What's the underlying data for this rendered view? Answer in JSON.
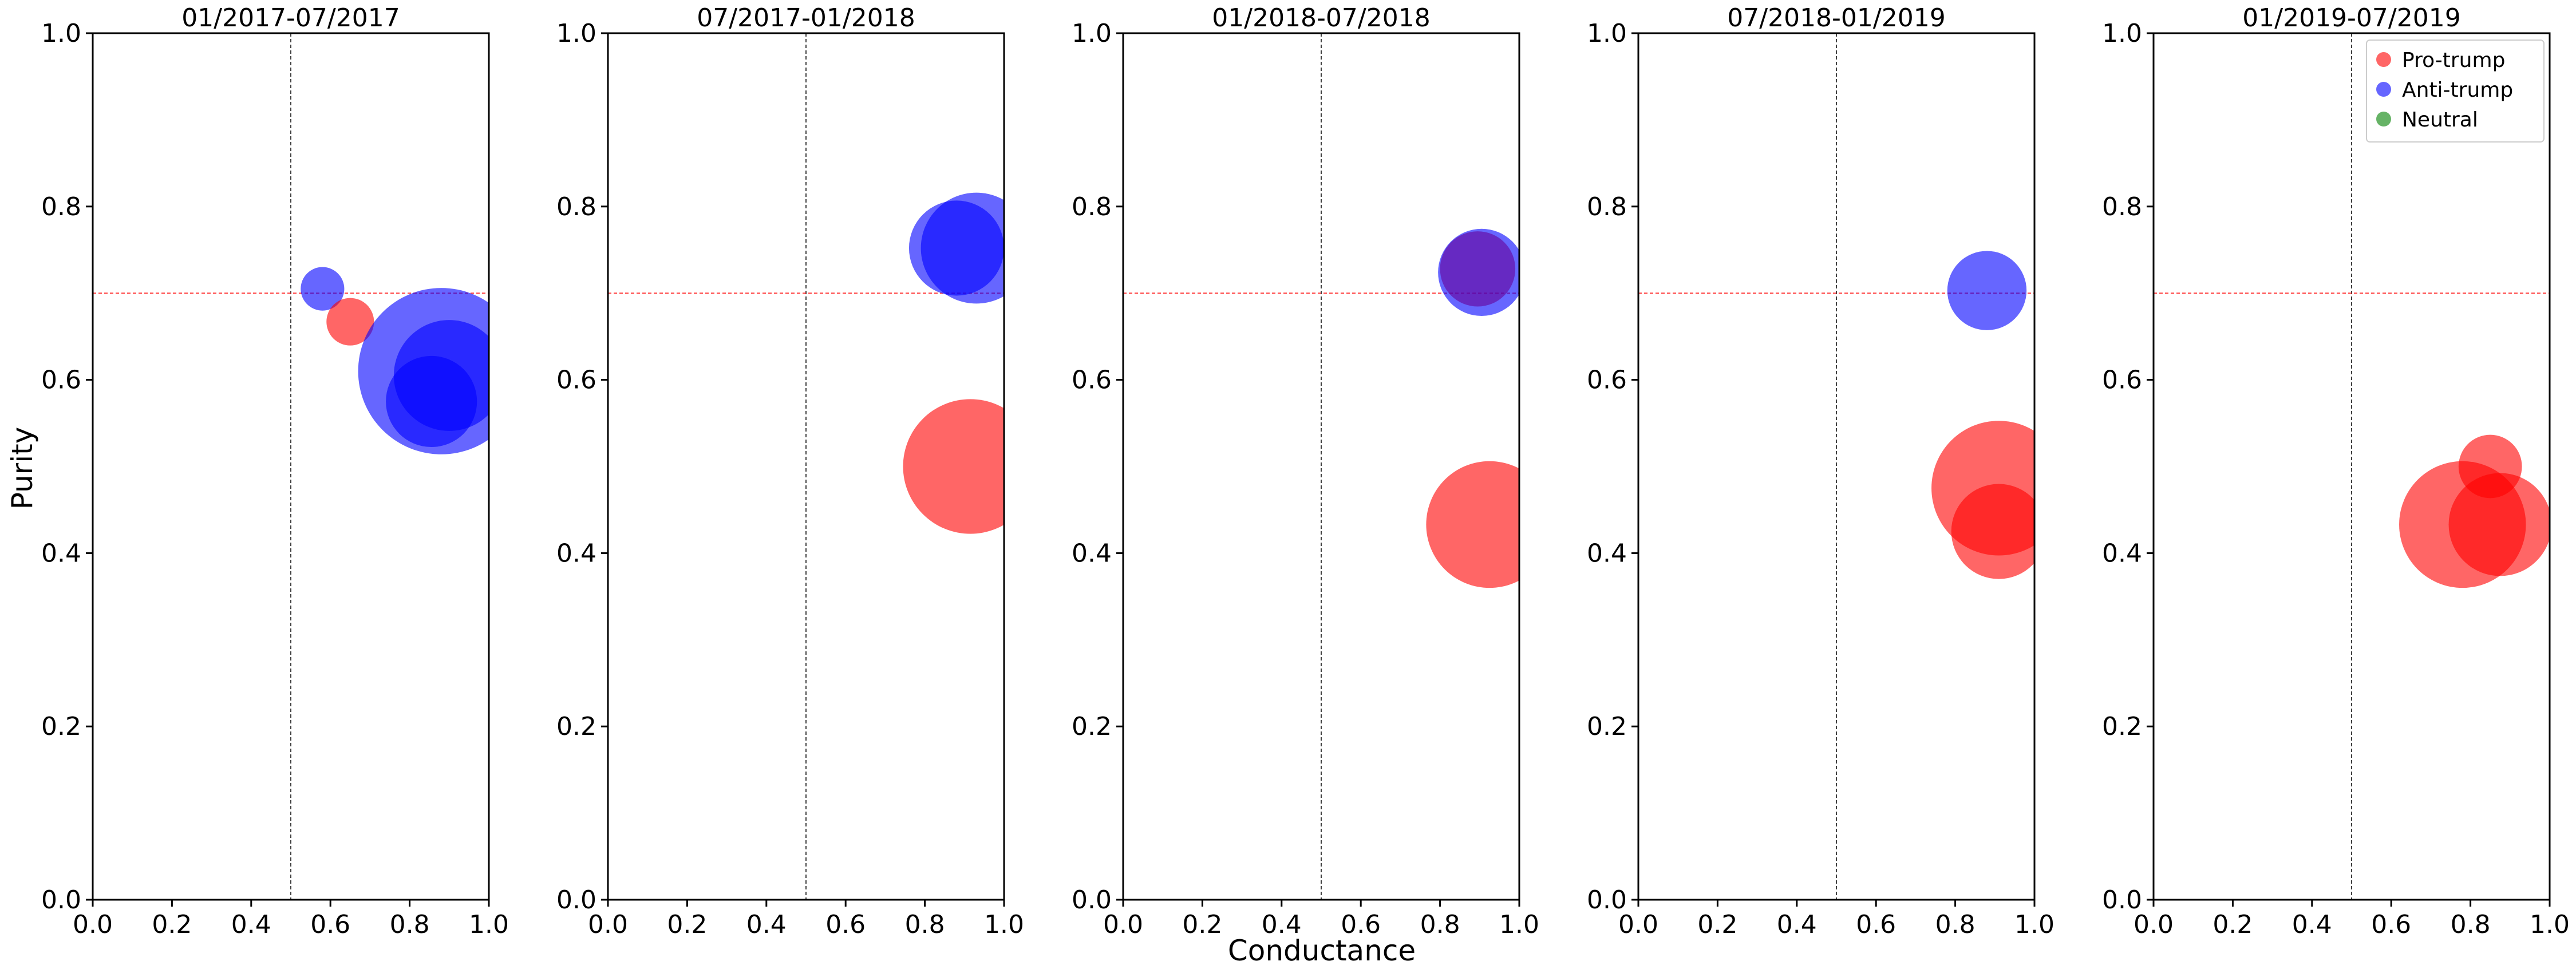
{
  "figure": {
    "xlabel": "Conductance",
    "ylabel": "Purity",
    "legend": {
      "placement": "upper-right",
      "entries": [
        {
          "label": "Pro-trump",
          "color": "#ff0000"
        },
        {
          "label": "Anti-trump",
          "color": "#0000ff"
        },
        {
          "label": "Neutral",
          "color": "#008000"
        }
      ]
    }
  },
  "chart_data": [
    {
      "type": "scatter",
      "title": "01/2017-07/2017",
      "xlim": [
        0,
        1
      ],
      "ylim": [
        0,
        1
      ],
      "xticks": [
        "0.0",
        "0.2",
        "0.4",
        "0.6",
        "0.8",
        "1.0"
      ],
      "yticks": [
        "0.0",
        "0.2",
        "0.4",
        "0.6",
        "0.8",
        "1.0"
      ],
      "vline": 0.5,
      "hline": 0.7,
      "points": [
        {
          "series": "Anti-trump",
          "x": 0.58,
          "y": 0.705,
          "size": 0.11
        },
        {
          "series": "Pro-trump",
          "x": 0.65,
          "y": 0.667,
          "size": 0.12
        },
        {
          "series": "Anti-trump",
          "x": 0.88,
          "y": 0.61,
          "size": 0.42
        },
        {
          "series": "Anti-trump",
          "x": 0.9,
          "y": 0.605,
          "size": 0.28
        },
        {
          "series": "Anti-trump",
          "x": 0.855,
          "y": 0.575,
          "size": 0.23
        }
      ]
    },
    {
      "type": "scatter",
      "title": "07/2017-01/2018",
      "xlim": [
        0,
        1
      ],
      "ylim": [
        0,
        1
      ],
      "xticks": [
        "0.0",
        "0.2",
        "0.4",
        "0.6",
        "0.8",
        "1.0"
      ],
      "yticks": [
        "0.0",
        "0.2",
        "0.4",
        "0.6",
        "0.8",
        "1.0"
      ],
      "vline": 0.5,
      "hline": 0.7,
      "points": [
        {
          "series": "Anti-trump",
          "x": 0.88,
          "y": 0.752,
          "size": 0.24
        },
        {
          "series": "Anti-trump",
          "x": 0.93,
          "y": 0.752,
          "size": 0.28
        },
        {
          "series": "Pro-trump",
          "x": 0.915,
          "y": 0.5,
          "size": 0.34
        }
      ]
    },
    {
      "type": "scatter",
      "title": "01/2018-07/2018",
      "xlim": [
        0,
        1
      ],
      "ylim": [
        0,
        1
      ],
      "xticks": [
        "0.0",
        "0.2",
        "0.4",
        "0.6",
        "0.8",
        "1.0"
      ],
      "yticks": [
        "0.0",
        "0.2",
        "0.4",
        "0.6",
        "0.8",
        "1.0"
      ],
      "vline": 0.5,
      "hline": 0.7,
      "points": [
        {
          "series": "Pro-trump",
          "x": 0.895,
          "y": 0.728,
          "size": 0.19
        },
        {
          "series": "Anti-trump",
          "x": 0.905,
          "y": 0.724,
          "size": 0.22
        },
        {
          "series": "Pro-trump",
          "x": 0.925,
          "y": 0.433,
          "size": 0.32
        }
      ]
    },
    {
      "type": "scatter",
      "title": "07/2018-01/2019",
      "xlim": [
        0,
        1
      ],
      "ylim": [
        0,
        1
      ],
      "xticks": [
        "0.0",
        "0.2",
        "0.4",
        "0.6",
        "0.8",
        "1.0"
      ],
      "yticks": [
        "0.0",
        "0.2",
        "0.4",
        "0.6",
        "0.8",
        "1.0"
      ],
      "vline": 0.5,
      "hline": 0.7,
      "points": [
        {
          "series": "Anti-trump",
          "x": 0.88,
          "y": 0.703,
          "size": 0.2
        },
        {
          "series": "Pro-trump",
          "x": 0.91,
          "y": 0.475,
          "size": 0.34
        },
        {
          "series": "Pro-trump",
          "x": 0.91,
          "y": 0.425,
          "size": 0.24
        }
      ]
    },
    {
      "type": "scatter",
      "title": "01/2019-07/2019",
      "xlim": [
        0,
        1
      ],
      "ylim": [
        0,
        1
      ],
      "xticks": [
        "0.0",
        "0.2",
        "0.4",
        "0.6",
        "0.8",
        "1.0"
      ],
      "yticks": [
        "0.0",
        "0.2",
        "0.4",
        "0.6",
        "0.8",
        "1.0"
      ],
      "vline": 0.5,
      "hline": 0.7,
      "points": [
        {
          "series": "Pro-trump",
          "x": 0.85,
          "y": 0.5,
          "size": 0.16
        },
        {
          "series": "Pro-trump",
          "x": 0.78,
          "y": 0.433,
          "size": 0.32
        },
        {
          "series": "Pro-trump",
          "x": 0.875,
          "y": 0.433,
          "size": 0.26
        }
      ]
    }
  ]
}
